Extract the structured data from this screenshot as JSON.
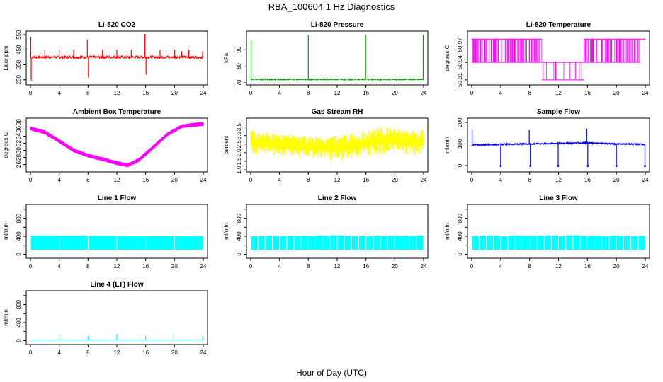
{
  "figure": {
    "title": "RBA_100604  1 Hz Diagnostics",
    "xlabel": "Hour of Day (UTC)"
  },
  "chart_data": [
    {
      "id": "co2",
      "type": "line",
      "title": "Li-820 CO2",
      "ylabel": "Licor ppm",
      "color": "#ff0000",
      "xlim": [
        0,
        24
      ],
      "ylim": [
        230,
        560
      ],
      "xticks": [
        0,
        4,
        8,
        12,
        16,
        20,
        24
      ],
      "yticks": [
        250,
        350,
        450,
        550
      ],
      "ytick_labels": [
        "250",
        "350",
        "450",
        "550"
      ],
      "baseline": 400,
      "band": [
        392,
        410
      ],
      "spikes": [
        {
          "x": 0.05,
          "y": 535
        },
        {
          "x": 0.1,
          "y": 245
        },
        {
          "x": 2,
          "y": 450
        },
        {
          "x": 4,
          "y": 450
        },
        {
          "x": 6,
          "y": 450
        },
        {
          "x": 7.9,
          "y": 520
        },
        {
          "x": 8.05,
          "y": 265
        },
        {
          "x": 10,
          "y": 450
        },
        {
          "x": 12,
          "y": 450
        },
        {
          "x": 14,
          "y": 450
        },
        {
          "x": 15.9,
          "y": 555
        },
        {
          "x": 16.05,
          "y": 285
        },
        {
          "x": 18,
          "y": 450
        },
        {
          "x": 20,
          "y": 450
        },
        {
          "x": 21,
          "y": 440
        },
        {
          "x": 22,
          "y": 450
        },
        {
          "x": 23.9,
          "y": 440
        }
      ]
    },
    {
      "id": "pressure",
      "type": "line",
      "title": "Li-820 Pressure",
      "ylabel": "kPa",
      "color": "#00a000",
      "xlim": [
        0,
        24
      ],
      "ylim": [
        70,
        100
      ],
      "xticks": [
        0,
        4,
        8,
        12,
        16,
        20,
        24
      ],
      "yticks": [
        70,
        80,
        90
      ],
      "ytick_labels": [
        "70",
        "80",
        "90"
      ],
      "baseline": 72,
      "band": [
        71.6,
        72.4
      ],
      "spikes": [
        {
          "x": 0.05,
          "y": 96
        },
        {
          "x": 8,
          "y": 99
        },
        {
          "x": 15.95,
          "y": 99
        },
        {
          "x": 23.95,
          "y": 99
        }
      ]
    },
    {
      "id": "licor_temp",
      "type": "line",
      "title": "Li-820 Temperature",
      "ylabel": "degrees C",
      "color": "#ff00ff",
      "xlim": [
        0,
        24
      ],
      "ylim": [
        50.905,
        50.99
      ],
      "xticks": [
        0,
        4,
        8,
        12,
        16,
        20,
        24
      ],
      "yticks": [
        50.91,
        50.94,
        50.97
      ],
      "ytick_labels": [
        "50.91",
        "50.94",
        "50.97"
      ],
      "levels": [
        50.91,
        50.94,
        50.98
      ],
      "segments": [
        {
          "from": 0,
          "to": 9.7,
          "levels": [
            50.94,
            50.98
          ]
        },
        {
          "from": 9.7,
          "to": 15.5,
          "levels": [
            50.91,
            50.94
          ]
        },
        {
          "from": 15.5,
          "to": 23.3,
          "levels": [
            50.94,
            50.98
          ]
        },
        {
          "from": 23.3,
          "to": 24,
          "levels": [
            50.98
          ]
        }
      ]
    },
    {
      "id": "box_temp",
      "type": "line",
      "title": "Ambient Box Temperature",
      "ylabel": "degrees C",
      "color": "#ff00ff",
      "xlim": [
        0,
        24
      ],
      "ylim": [
        24.5,
        38.5
      ],
      "xticks": [
        0,
        4,
        8,
        12,
        16,
        20,
        24
      ],
      "yticks": [
        26,
        28,
        30,
        32,
        34,
        36,
        38
      ],
      "ytick_labels": [
        "26",
        "28",
        "30",
        "32",
        "34",
        "36",
        "38"
      ],
      "x": [
        0,
        2,
        4,
        6,
        8,
        10,
        12,
        13.5,
        15,
        17,
        19,
        21,
        23,
        24
      ],
      "y": [
        36.2,
        35.1,
        32.6,
        30.0,
        28.5,
        27.5,
        26.4,
        25.8,
        27.2,
        30.8,
        34.5,
        36.8,
        37.3,
        37.4
      ],
      "band_half_width": 0.5
    },
    {
      "id": "rh",
      "type": "line",
      "title": "Gas Stream RH",
      "ylabel": "percent",
      "color": "#ffff00",
      "xlim": [
        0,
        24
      ],
      "ylim": [
        1.0,
        3.9
      ],
      "xticks": [
        0,
        4,
        8,
        12,
        16,
        20,
        24
      ],
      "yticks": [
        1.0,
        1.5,
        2.0,
        2.5,
        3.0,
        3.5
      ],
      "ytick_labels": [
        "1.0",
        "1.5",
        "2.0",
        "2.5",
        "3.0",
        "3.5"
      ],
      "x": [
        0,
        4,
        8,
        12,
        14,
        16,
        18.5,
        20,
        22,
        24
      ],
      "lower": [
        1.9,
        1.8,
        1.7,
        1.5,
        1.6,
        1.8,
        1.9,
        2.0,
        1.8,
        1.8
      ],
      "upper": [
        3.3,
        3.1,
        3.0,
        3.0,
        3.1,
        3.3,
        3.6,
        3.4,
        3.3,
        3.4
      ]
    },
    {
      "id": "sample_flow",
      "type": "line",
      "title": "Sample Flow",
      "ylabel": "ml/min",
      "color": "#0000ff",
      "xlim": [
        0,
        24
      ],
      "ylim": [
        -20,
        210
      ],
      "xticks": [
        0,
        4,
        8,
        12,
        16,
        20,
        24
      ],
      "yticks": [
        0,
        100,
        200
      ],
      "ytick_labels": [
        "0",
        "100",
        "200"
      ],
      "x": [
        0,
        4,
        8,
        12,
        16,
        20,
        24
      ],
      "y": [
        95,
        98,
        100,
        103,
        105,
        100,
        98
      ],
      "spikes": [
        {
          "x": 0.05,
          "y": 165
        },
        {
          "x": 4,
          "y": -2
        },
        {
          "x": 7.95,
          "y": 165
        },
        {
          "x": 8.1,
          "y": -2
        },
        {
          "x": 11.95,
          "y": -2
        },
        {
          "x": 15.9,
          "y": 170
        },
        {
          "x": 16.05,
          "y": -2
        },
        {
          "x": 20,
          "y": -2
        },
        {
          "x": 23.95,
          "y": -2
        }
      ]
    },
    {
      "id": "line1",
      "type": "line",
      "title": "Line 1 Flow",
      "ylabel": "ml/min",
      "color": "#00ffff",
      "xlim": [
        0,
        24
      ],
      "ylim": [
        -40,
        1060
      ],
      "xticks": [
        0,
        4,
        8,
        12,
        16,
        20,
        24
      ],
      "yticks": [
        0,
        200,
        400,
        600,
        800,
        1000
      ],
      "ytick_labels": [
        "0",
        "",
        "400",
        "",
        "800",
        ""
      ],
      "band": [
        100,
        400
      ],
      "band_top": [
        400,
        420
      ],
      "gaps": [
        4,
        8,
        12,
        16,
        20,
        24
      ]
    },
    {
      "id": "line2",
      "type": "line",
      "title": "Line 2 Flow",
      "ylabel": "ml/min",
      "color": "#00ffff",
      "xlim": [
        0,
        24
      ],
      "ylim": [
        -40,
        1060
      ],
      "xticks": [
        0,
        4,
        8,
        12,
        16,
        20,
        24
      ],
      "yticks": [
        0,
        200,
        400,
        600,
        800,
        1000
      ],
      "ytick_labels": [
        "0",
        "",
        "400",
        "",
        "800",
        ""
      ],
      "band": [
        100,
        400
      ],
      "band_top": [
        400,
        420
      ],
      "gaps": [
        1,
        2,
        3,
        4,
        5,
        6,
        7,
        8,
        9,
        10,
        11,
        12,
        13,
        14,
        15,
        16,
        17,
        18,
        19,
        20,
        21,
        22,
        23,
        24
      ]
    },
    {
      "id": "line3",
      "type": "line",
      "title": "Line 3 Flow",
      "ylabel": "ml/min",
      "color": "#00ffff",
      "xlim": [
        0,
        24
      ],
      "ylim": [
        -40,
        1060
      ],
      "xticks": [
        0,
        4,
        8,
        12,
        16,
        20,
        24
      ],
      "yticks": [
        0,
        200,
        400,
        600,
        800,
        1000
      ],
      "ytick_labels": [
        "0",
        "",
        "400",
        "",
        "800",
        ""
      ],
      "band": [
        100,
        400
      ],
      "band_top": [
        400,
        420
      ],
      "gaps": [
        1,
        2,
        3,
        4,
        5,
        6,
        7,
        8,
        9,
        10,
        11,
        12,
        13,
        14,
        15,
        16,
        17,
        18,
        19,
        20,
        21,
        22,
        23,
        24
      ]
    },
    {
      "id": "line4",
      "type": "line",
      "title": "Line 4 (LT) Flow",
      "ylabel": "ml/min",
      "color": "#00ffff",
      "xlim": [
        0,
        24
      ],
      "ylim": [
        -40,
        1060
      ],
      "xticks": [
        0,
        4,
        8,
        12,
        16,
        20,
        24
      ],
      "yticks": [
        0,
        200,
        400,
        600,
        800,
        1000
      ],
      "ytick_labels": [
        "0",
        "",
        "400",
        "",
        "800",
        ""
      ],
      "baseline": 15,
      "spikes": [
        {
          "x": 4,
          "y": 150
        },
        {
          "x": 8,
          "y": 100
        },
        {
          "x": 12,
          "y": 145
        },
        {
          "x": 16,
          "y": 100
        },
        {
          "x": 19.9,
          "y": 150
        },
        {
          "x": 23.9,
          "y": 100
        }
      ]
    }
  ]
}
